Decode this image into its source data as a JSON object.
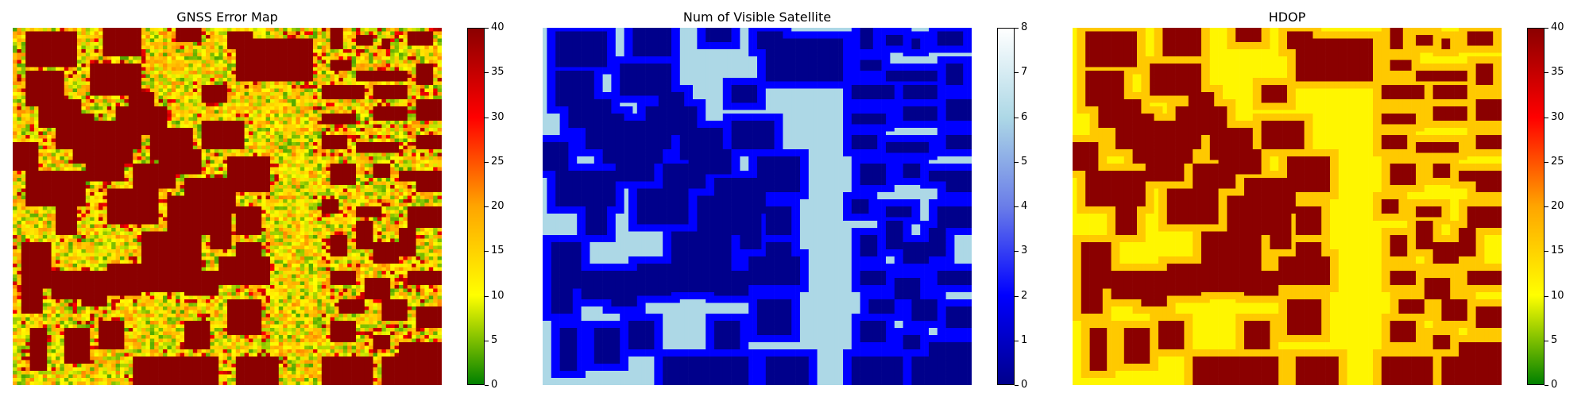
{
  "chart_data": [
    {
      "type": "heatmap",
      "title": "GNSS Error Map",
      "colormap": [
        "#008000",
        "#ffff00",
        "#ffa500",
        "#ff0000",
        "#8b0000"
      ],
      "colorbar": {
        "min": 0,
        "max": 40,
        "ticks": [
          0,
          5,
          10,
          15,
          20,
          25,
          30,
          35,
          40
        ]
      },
      "cell_values": {
        "building": 40,
        "street_noise_range": [
          3,
          22
        ],
        "street_mean": 12
      }
    },
    {
      "type": "heatmap",
      "title": "Num of Visible Satellite",
      "colormap": [
        "#00008b",
        "#0000ff",
        "#6a7de8",
        "#add8e6",
        "#ffffff"
      ],
      "colorbar": {
        "min": 0,
        "max": 8,
        "ticks": [
          0,
          1,
          2,
          3,
          4,
          5,
          6,
          7,
          8
        ]
      },
      "cell_values": {
        "building": 0,
        "edge": 2,
        "open": 6
      }
    },
    {
      "type": "heatmap",
      "title": "HDOP",
      "colormap": [
        "#008000",
        "#ffff00",
        "#ffa500",
        "#ff0000",
        "#8b0000"
      ],
      "colorbar": {
        "min": 0,
        "max": 40,
        "ticks": [
          0,
          5,
          10,
          15,
          20,
          25,
          30,
          35,
          40
        ]
      },
      "cell_values": {
        "building": 40,
        "edge": 16,
        "open": 11
      }
    }
  ]
}
